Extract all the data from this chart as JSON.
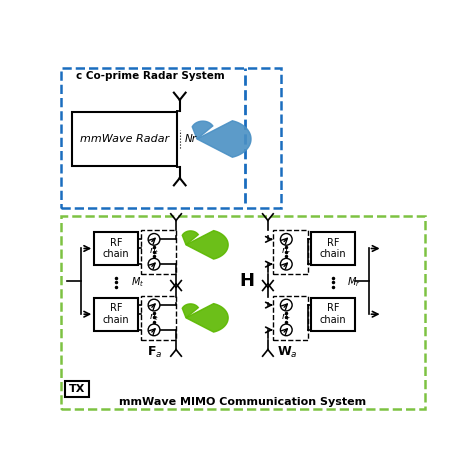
{
  "title": "mmWave MIMO Communication System",
  "radar_label": "mmWave Radar",
  "radar_system_label": "c Co-prime Radar System",
  "tx_label": "TX",
  "blue_dashed_color": "#1a6dbf",
  "green_dashed_color": "#7dc242",
  "background": "#ffffff",
  "beam_blue": "#4a90c4",
  "beam_green": "#5cb800"
}
